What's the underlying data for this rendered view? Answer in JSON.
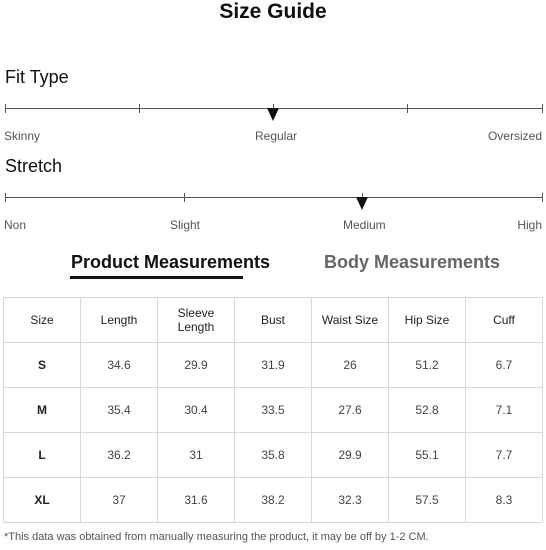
{
  "title": "Size Guide",
  "fit_type": {
    "label": "Fit Type",
    "options": [
      "Skinny",
      "Regular",
      "Oversized"
    ],
    "selected": "Regular"
  },
  "stretch": {
    "label": "Stretch",
    "options": [
      "Non",
      "Slight",
      "Medium",
      "High"
    ],
    "selected": "Medium"
  },
  "tabs": {
    "product": "Product Measurements",
    "body": "Body Measurements",
    "active": "Product Measurements"
  },
  "table": {
    "headers": [
      "Size",
      "Length",
      "Sleeve Length",
      "Bust",
      "Waist Size",
      "Hip Size",
      "Cuff"
    ],
    "rows": [
      [
        "S",
        "34.6",
        "29.9",
        "31.9",
        "26",
        "51.2",
        "6.7"
      ],
      [
        "M",
        "35.4",
        "30.4",
        "33.5",
        "27.6",
        "52.8",
        "7.1"
      ],
      [
        "L",
        "36.2",
        "31",
        "35.8",
        "29.9",
        "55.1",
        "7.7"
      ],
      [
        "XL",
        "37",
        "31.6",
        "38.2",
        "32.3",
        "57.5",
        "8.3"
      ]
    ]
  },
  "footnote": "*This data was obtained from manually measuring the product, it may be off by 1-2 CM."
}
